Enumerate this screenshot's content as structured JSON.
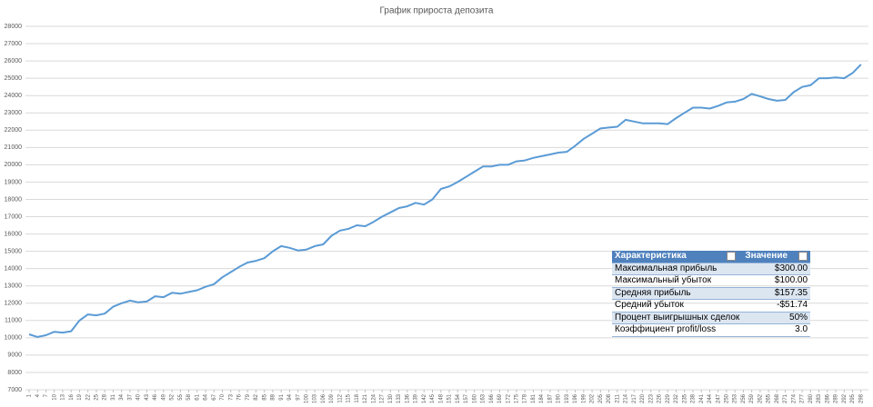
{
  "chart_data": {
    "type": "line",
    "title": "График прироста депозита",
    "categories": [
      1,
      4,
      7,
      10,
      13,
      16,
      19,
      22,
      25,
      28,
      31,
      34,
      37,
      40,
      43,
      46,
      49,
      52,
      55,
      58,
      61,
      64,
      67,
      70,
      73,
      76,
      79,
      82,
      85,
      88,
      91,
      94,
      97,
      100,
      103,
      106,
      109,
      112,
      115,
      118,
      121,
      124,
      127,
      130,
      133,
      136,
      139,
      142,
      145,
      148,
      151,
      154,
      157,
      160,
      163,
      166,
      169,
      172,
      175,
      178,
      181,
      184,
      187,
      190,
      193,
      196,
      199,
      202,
      205,
      208,
      211,
      214,
      217,
      220,
      223,
      226,
      229,
      232,
      235,
      238,
      241,
      244,
      247,
      250,
      253,
      256,
      259,
      262,
      265,
      268,
      271,
      274,
      277,
      280,
      283,
      286,
      289,
      292,
      295,
      298
    ],
    "values": [
      10200,
      10050,
      10150,
      10350,
      10300,
      10380,
      11000,
      11350,
      11300,
      11400,
      11800,
      12000,
      12150,
      12050,
      12100,
      12400,
      12350,
      12600,
      12550,
      12650,
      12750,
      12950,
      13100,
      13500,
      13800,
      14100,
      14350,
      14450,
      14600,
      15000,
      15300,
      15200,
      15050,
      15100,
      15300,
      15400,
      15900,
      16200,
      16300,
      16500,
      16450,
      16700,
      17000,
      17250,
      17500,
      17600,
      17800,
      17700,
      18000,
      18600,
      18750,
      19000,
      19300,
      19600,
      19900,
      19900,
      20000,
      20000,
      20200,
      20250,
      20400,
      20500,
      20600,
      20700,
      20750,
      21100,
      21500,
      21800,
      22100,
      22150,
      22200,
      22600,
      22500,
      22400,
      22400,
      22400,
      22350,
      22700,
      23000,
      23300,
      23300,
      23250,
      23400,
      23600,
      23650,
      23800,
      24100,
      23950,
      23800,
      23700,
      23750,
      24200,
      24500,
      24600,
      25000,
      25000,
      25050,
      25000,
      25300,
      25800
    ],
    "color": "#5b9bd5",
    "ylim": [
      7000,
      28000
    ],
    "yticks": [
      7000,
      8000,
      9000,
      10000,
      11000,
      12000,
      13000,
      14000,
      15000,
      16000,
      17000,
      18000,
      19000,
      20000,
      21000,
      22000,
      23000,
      24000,
      25000,
      26000,
      27000,
      28000
    ],
    "grid": true
  },
  "table": {
    "header": [
      "Характеристика",
      "Значение"
    ],
    "rows": [
      [
        "Максимальная прибыль",
        "$300.00"
      ],
      [
        "Максимальный убыток",
        "$100.00"
      ],
      [
        "Средняя прибыль",
        "$157.35"
      ],
      [
        "Средний убыток",
        "-$51.74"
      ],
      [
        "Процент выигрышных сделок",
        "50%"
      ],
      [
        "Коэффициент profit/loss",
        "3.0"
      ]
    ]
  }
}
